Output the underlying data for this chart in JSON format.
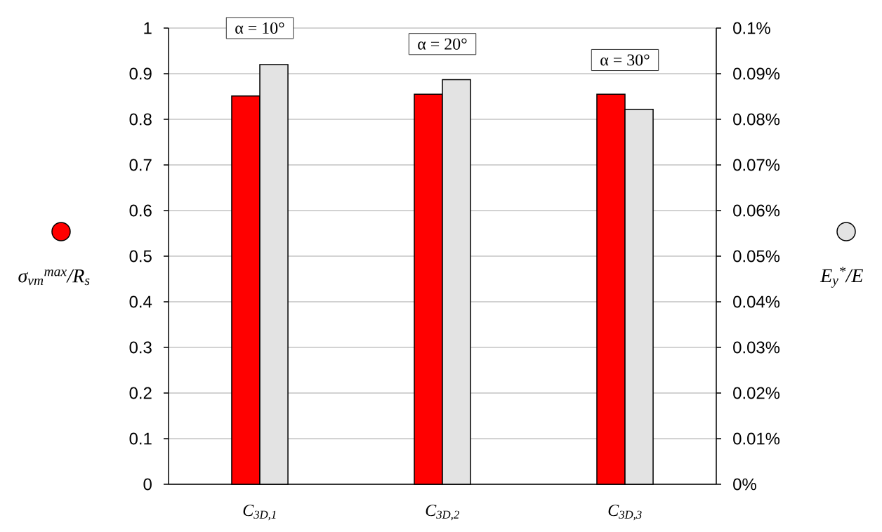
{
  "chart_data": {
    "type": "bar",
    "categories": [
      "C$_{3D,1}$",
      "C$_{3D,2}$",
      "C$_{3D,3}$"
    ],
    "series": [
      {
        "color": "#ff0000",
        "values": [
          0.851,
          0.855,
          0.855
        ]
      },
      {
        "color": "#e3e3e3",
        "values": [
          0.092,
          0.0887,
          0.0822
        ],
        "axis": "y2"
      }
    ],
    "ylabel": "σ$_{vm}$$^{max}$/R$_{s}$",
    "y2label": "E$_{y}$$^{*}$/E",
    "ylim": [
      0,
      1
    ],
    "yticks": [
      0,
      0.1,
      0.2,
      0.3,
      0.4,
      0.5,
      0.6,
      0.7,
      0.8,
      0.9,
      1
    ],
    "y2lim": [
      0,
      0.1
    ],
    "y2ticks": [
      {
        "value": 0,
        "label": "0%"
      },
      {
        "value": 0.01,
        "label": "0.01%"
      },
      {
        "value": 0.02,
        "label": "0.02%"
      },
      {
        "value": 0.03,
        "label": "0.03%"
      },
      {
        "value": 0.04,
        "label": "0.04%"
      },
      {
        "value": 0.05,
        "label": "0.05%"
      },
      {
        "value": 0.06,
        "label": "0.06%"
      },
      {
        "value": 0.07,
        "label": "0.07%"
      },
      {
        "value": 0.08,
        "label": "0.08%"
      },
      {
        "value": 0.09,
        "label": "0.09%"
      },
      {
        "value": 0.1,
        "label": "0.1%"
      }
    ],
    "grid": "y",
    "annotations": [
      "α = 10°",
      "α = 20°",
      "α = 30°"
    ]
  }
}
